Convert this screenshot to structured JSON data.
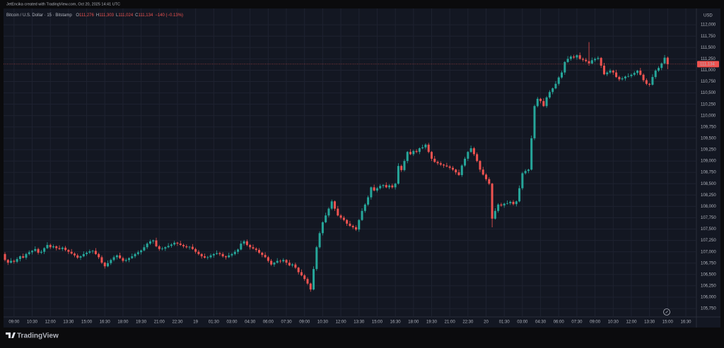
{
  "watermark": "JetEncika created with TradingView.com, Oct 20, 2025 14:41 UTC",
  "brand": "TradingView",
  "chart_data": {
    "type": "candlestick",
    "symbol": "Bitcoin / U.S. Dollar · 15 · Bitstamp",
    "ohlc_letters": [
      "O",
      "H",
      "L",
      "C"
    ],
    "ohlc_values": [
      "111,276",
      "111,303",
      "111,024",
      "111,134"
    ],
    "change": "−140 (−0.13%)",
    "currency": "USD",
    "last_price_label": "111,134",
    "up_color": "#26a69a",
    "down_color": "#ef5350",
    "grid": true,
    "ylim": [
      105580,
      112360
    ],
    "yticks": [
      {
        "value": 105750,
        "label": "105,750"
      },
      {
        "value": 106000,
        "label": "106,000"
      },
      {
        "value": 106250,
        "label": "106,250"
      },
      {
        "value": 106500,
        "label": "106,500"
      },
      {
        "value": 106750,
        "label": "106,750"
      },
      {
        "value": 107000,
        "label": "107,000"
      },
      {
        "value": 107250,
        "label": "107,250"
      },
      {
        "value": 107500,
        "label": "107,500"
      },
      {
        "value": 107750,
        "label": "107,750"
      },
      {
        "value": 108000,
        "label": "108,000"
      },
      {
        "value": 108250,
        "label": "108,250"
      },
      {
        "value": 108500,
        "label": "108,500"
      },
      {
        "value": 108750,
        "label": "108,750"
      },
      {
        "value": 109000,
        "label": "109,000"
      },
      {
        "value": 109250,
        "label": "109,250"
      },
      {
        "value": 109500,
        "label": "109,500"
      },
      {
        "value": 109750,
        "label": "109,750"
      },
      {
        "value": 110000,
        "label": "110,000"
      },
      {
        "value": 110250,
        "label": "110,250"
      },
      {
        "value": 110500,
        "label": "110,500"
      },
      {
        "value": 110750,
        "label": "110,750"
      },
      {
        "value": 111000,
        "label": "111,000"
      },
      {
        "value": 111250,
        "label": "111,250"
      },
      {
        "value": 111500,
        "label": "111,500"
      },
      {
        "value": 111750,
        "label": "111,750"
      },
      {
        "value": 112000,
        "label": "112,000"
      }
    ],
    "xtick_labels": [
      "09:00",
      "10:30",
      "12:00",
      "13:30",
      "15:00",
      "16:30",
      "18:00",
      "19:30",
      "21:00",
      "22:30",
      "19",
      "01:30",
      "03:00",
      "04:30",
      "06:00",
      "07:30",
      "09:00",
      "10:30",
      "12:00",
      "13:30",
      "15:00",
      "16:30",
      "18:00",
      "19:30",
      "21:00",
      "22:30",
      "20",
      "01:30",
      "03:00",
      "04:30",
      "06:00",
      "07:30",
      "09:00",
      "10:30",
      "12:00",
      "13:30",
      "15:00",
      "16:30"
    ],
    "open": [
      106950,
      106820,
      106760,
      106800,
      106780,
      106840,
      106900,
      106870,
      106950,
      106990,
      107020,
      107060,
      106980,
      107000,
      107080,
      107150,
      107100,
      107120,
      107080,
      107060,
      107090,
      107040,
      107000,
      106960,
      106920,
      106870,
      106900,
      106950,
      106980,
      107010,
      107020,
      106950,
      106880,
      106760,
      106680,
      106750,
      106820,
      106880,
      106920,
      106860,
      106800,
      106820,
      106860,
      106900,
      106950,
      106990,
      107030,
      107100,
      107180,
      107230,
      107250,
      107120,
      107060,
      107070,
      107100,
      107130,
      107160,
      107200,
      107180,
      107150,
      107120,
      107100,
      107110,
      107060,
      107000,
      106950,
      106900,
      106870,
      106880,
      106920,
      106950,
      106970,
      106950,
      106900,
      106880,
      106920,
      106950,
      107000,
      107050,
      107180,
      107230,
      107150,
      107100,
      107070,
      107040,
      106980,
      106930,
      106880,
      106800,
      106720,
      106760,
      106800,
      106790,
      106820,
      106760,
      106700,
      106720,
      106650,
      106550,
      106480,
      106400,
      106300,
      106170,
      106620,
      107100,
      107410,
      107650,
      107800,
      107950,
      108110,
      107950,
      107800,
      107750,
      107700,
      107620,
      107570,
      107540,
      107490,
      107700,
      107900,
      108040,
      108200,
      108420,
      108350,
      108400,
      108450,
      108470,
      108420,
      108460,
      108420,
      108500,
      108890,
      108800,
      109000,
      109200,
      109150,
      109220,
      109200,
      109280,
      109300,
      109360,
      109200,
      109050,
      108980,
      108950,
      108920,
      108900,
      108880,
      108850,
      108810,
      108750,
      108690,
      108900,
      109050,
      109200,
      109280,
      109150,
      109000,
      108810,
      108700,
      108600,
      108500,
      107730,
      107900,
      108040,
      108020,
      108060,
      108070,
      108100,
      108050,
      108110,
      108400,
      108730,
      108780,
      108810,
      109500,
      110210,
      110370,
      110320,
      110210,
      110400,
      110520,
      110600,
      110700,
      110840,
      110950,
      111180,
      111250,
      111300,
      111280,
      111330,
      111250,
      111230,
      111200,
      111150,
      111220,
      111250,
      111270,
      111100,
      110910,
      110950,
      110990,
      110950,
      110850,
      110800,
      110820,
      110860,
      110870,
      110900,
      110940,
      110990,
      110900,
      110780,
      110700,
      110680,
      110850,
      110990,
      111050,
      111150,
      111276
    ],
    "high": [
      106990,
      106840,
      106860,
      106830,
      106880,
      106920,
      106960,
      106980,
      107030,
      107040,
      107120,
      107090,
      107040,
      107100,
      107210,
      107180,
      107160,
      107140,
      107140,
      107120,
      107130,
      107060,
      107060,
      106990,
      106960,
      106920,
      107010,
      107010,
      107050,
      107040,
      107080,
      106980,
      106920,
      106780,
      106810,
      106850,
      106920,
      106940,
      106980,
      106890,
      106860,
      106880,
      106960,
      106980,
      107030,
      107050,
      107160,
      107210,
      107270,
      107270,
      107310,
      107150,
      107110,
      107120,
      107190,
      107190,
      107240,
      107220,
      107240,
      107180,
      107160,
      107130,
      107170,
      107090,
      107040,
      106970,
      106960,
      106910,
      106960,
      106970,
      107030,
      107000,
      106990,
      106920,
      106980,
      106980,
      107040,
      107070,
      107240,
      107260,
      107270,
      107170,
      107160,
      107100,
      107080,
      107000,
      106990,
      106910,
      106840,
      106780,
      106860,
      106830,
      106860,
      106840,
      106820,
      106750,
      106760,
      106670,
      106610,
      106510,
      106440,
      106320,
      106680,
      107130,
      107450,
      107670,
      107860,
      107980,
      108150,
      108130,
      108010,
      107830,
      107790,
      107720,
      107680,
      107600,
      107580,
      107720,
      107960,
      108070,
      108240,
      108440,
      108480,
      108430,
      108490,
      108490,
      108530,
      108490,
      108500,
      108520,
      108950,
      108920,
      109040,
      109220,
      109260,
      109250,
      109260,
      109300,
      109360,
      109390,
      109400,
      109220,
      109110,
      109010,
      108990,
      108940,
      108960,
      108910,
      108890,
      108830,
      108810,
      108930,
      109090,
      109220,
      109340,
      109310,
      109190,
      109020,
      108870,
      108730,
      108640,
      108520,
      107960,
      108070,
      108080,
      108080,
      108130,
      108130,
      108140,
      108130,
      108460,
      108760,
      108820,
      108830,
      109560,
      110240,
      110410,
      110390,
      110380,
      110430,
      110560,
      110620,
      110760,
      110870,
      110990,
      111200,
      111310,
      111330,
      111340,
      111350,
      111390,
      111280,
      111270,
      111620,
      111280,
      111280,
      111310,
      111290,
      111160,
      110980,
      111030,
      111010,
      111010,
      110880,
      110860,
      110880,
      110930,
      110930,
      110980,
      111010,
      111050,
      110930,
      110820,
      110720,
      110910,
      111020,
      111090,
      111170,
      111336,
      111303
    ],
    "low": [
      106790,
      106710,
      106740,
      106740,
      106750,
      106790,
      106850,
      106830,
      106920,
      106940,
      107000,
      106940,
      106950,
      106950,
      107060,
      107060,
      107070,
      107030,
      107040,
      107020,
      107010,
      106950,
      106940,
      106880,
      106840,
      106820,
      106880,
      106910,
      106950,
      106960,
      106930,
      106840,
      106730,
      106630,
      106660,
      106710,
      106790,
      106830,
      106840,
      106760,
      106770,
      106770,
      106840,
      106860,
      106920,
      106940,
      107010,
      107060,
      107150,
      107180,
      107100,
      107020,
      107030,
      107020,
      107080,
      107090,
      107130,
      107130,
      107130,
      107080,
      107070,
      107050,
      107040,
      106960,
      106920,
      106850,
      106850,
      106830,
      106850,
      106870,
      106930,
      106910,
      106870,
      106830,
      106860,
      106880,
      106920,
      106950,
      107030,
      107140,
      107120,
      107050,
      107050,
      107000,
      106950,
      106880,
      106860,
      106760,
      106690,
      106670,
      106740,
      106750,
      106760,
      106710,
      106680,
      106660,
      106620,
      106500,
      106460,
      106360,
      106270,
      106120,
      106150,
      106580,
      107070,
      107360,
      107630,
      107760,
      107920,
      107900,
      107780,
      107710,
      107670,
      107570,
      107550,
      107500,
      107460,
      107440,
      107680,
      107860,
      108010,
      108150,
      108330,
      108310,
      108370,
      108400,
      108400,
      108380,
      108390,
      108370,
      108480,
      108760,
      108770,
      108950,
      109130,
      109110,
      109170,
      109150,
      109260,
      109260,
      109170,
      109000,
      108960,
      108910,
      108890,
      108850,
      108860,
      108810,
      108780,
      108700,
      108670,
      108650,
      108870,
      109000,
      109180,
      109110,
      108970,
      108760,
      108680,
      108560,
      108470,
      107540,
      107710,
      107860,
      107990,
      107970,
      108040,
      108030,
      108020,
      108000,
      108090,
      108360,
      108700,
      108730,
      108790,
      109460,
      110180,
      110270,
      110190,
      110170,
      110370,
      110470,
      110580,
      110660,
      110810,
      110900,
      111160,
      111210,
      111250,
      111230,
      111230,
      111190,
      111170,
      111100,
      111130,
      111180,
      111220,
      111050,
      110890,
      110870,
      110920,
      110900,
      110830,
      110760,
      110770,
      110770,
      110840,
      110830,
      110870,
      110890,
      110880,
      110740,
      110670,
      110640,
      110660,
      110810,
      110960,
      111000,
      111130,
      111024
    ],
    "close": [
      106820,
      106760,
      106800,
      106780,
      106840,
      106900,
      106870,
      106950,
      106990,
      107020,
      107060,
      106980,
      107000,
      107080,
      107150,
      107100,
      107120,
      107080,
      107060,
      107090,
      107040,
      107000,
      106960,
      106920,
      106870,
      106900,
      106950,
      106980,
      107010,
      107020,
      106950,
      106880,
      106760,
      106680,
      106750,
      106820,
      106880,
      106920,
      106860,
      106800,
      106820,
      106860,
      106900,
      106950,
      106990,
      107030,
      107100,
      107180,
      107230,
      107250,
      107120,
      107060,
      107070,
      107100,
      107130,
      107160,
      107200,
      107180,
      107150,
      107120,
      107100,
      107110,
      107060,
      107000,
      106950,
      106900,
      106870,
      106880,
      106920,
      106950,
      106970,
      106950,
      106900,
      106880,
      106920,
      106950,
      107000,
      107050,
      107180,
      107230,
      107150,
      107100,
      107070,
      107040,
      106980,
      106930,
      106880,
      106800,
      106720,
      106760,
      106800,
      106790,
      106820,
      106760,
      106700,
      106720,
      106650,
      106550,
      106480,
      106400,
      106300,
      106170,
      106620,
      107100,
      107410,
      107650,
      107800,
      107950,
      108110,
      107950,
      107800,
      107750,
      107700,
      107620,
      107570,
      107540,
      107490,
      107700,
      107900,
      108040,
      108200,
      108420,
      108350,
      108400,
      108450,
      108470,
      108420,
      108460,
      108420,
      108500,
      108890,
      108800,
      109000,
      109200,
      109150,
      109220,
      109200,
      109280,
      109300,
      109360,
      109200,
      109050,
      108980,
      108950,
      108920,
      108900,
      108880,
      108850,
      108810,
      108750,
      108690,
      108900,
      109050,
      109200,
      109280,
      109150,
      109000,
      108810,
      108700,
      108600,
      108500,
      107730,
      107900,
      108040,
      108020,
      108060,
      108070,
      108100,
      108050,
      108110,
      108400,
      108730,
      108780,
      108810,
      109500,
      110210,
      110370,
      110320,
      110210,
      110400,
      110520,
      110600,
      110700,
      110840,
      110950,
      111180,
      111250,
      111300,
      111280,
      111330,
      111250,
      111230,
      111200,
      111150,
      111220,
      111250,
      111270,
      111100,
      110910,
      110950,
      110990,
      110950,
      110850,
      110800,
      110820,
      110860,
      110870,
      110900,
      110940,
      110990,
      110900,
      110780,
      110700,
      110680,
      110850,
      110990,
      111050,
      111150,
      111276,
      111134
    ]
  }
}
